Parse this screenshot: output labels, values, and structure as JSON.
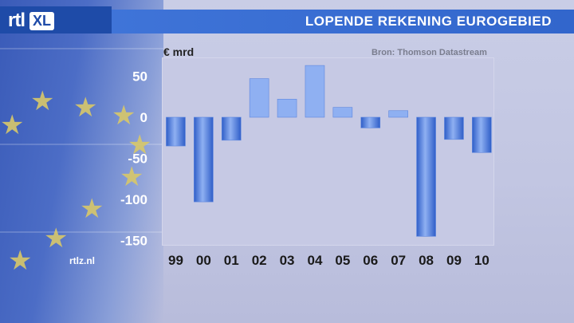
{
  "header": {
    "logo_text": "rtl",
    "logo_box_text": "XL",
    "title": "LOPENDE REKENING EUROGEBIED"
  },
  "footer": {
    "site": "rtlz.nl"
  },
  "chart_data": {
    "type": "bar",
    "title": "LOPENDE REKENING EUROGEBIED",
    "unit_label": "€ mrd",
    "source": "Bron: Thomson Datastream",
    "categories": [
      "99",
      "00",
      "01",
      "02",
      "03",
      "04",
      "05",
      "06",
      "07",
      "08",
      "09",
      "10"
    ],
    "values": [
      -35,
      -103,
      -28,
      47,
      22,
      63,
      12,
      -13,
      8,
      -145,
      -27,
      -43
    ],
    "ylim": [
      -150,
      75
    ],
    "yticks": [
      50,
      0,
      -50,
      -100,
      -150
    ],
    "grid": false,
    "colors": {
      "bar_light": "#8fb0f2",
      "bar_dark": "#2f5ec8",
      "bar_top": "#5d86de",
      "title_bar": "#3a6fd6"
    }
  }
}
